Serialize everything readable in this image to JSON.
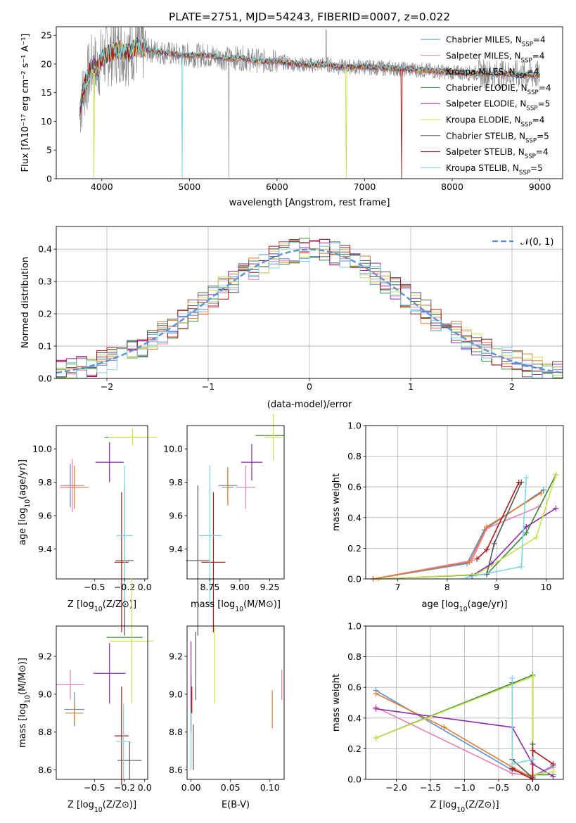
{
  "colors": {
    "Chabrier MILES": "#5b8fd6",
    "Salpeter MILES": "#e87fb0",
    "Kroupa MILES": "#e07a2a",
    "Chabrier ELODIE": "#3a8a3a",
    "Salpeter ELODIE": "#8e2bb0",
    "Kroupa ELODIE": "#c8e04a",
    "Chabrier STELIB": "#555555",
    "Salpeter STELIB": "#b01515",
    "Kroupa STELIB": "#7ad6df"
  },
  "chart_data": [
    {
      "type": "line",
      "title": "PLATE=2751, MJD=54243, FIBERID=0007, z=0.022",
      "xlabel": "wavelength [Angstrom, rest frame]",
      "ylabel": "Flux [fλ10⁻¹⁷ erg cm⁻² s⁻¹ A⁻¹]",
      "xlim": [
        3480,
        9260
      ],
      "ylim": [
        0,
        26.5
      ],
      "xticks": [
        "4000",
        "5000",
        "6000",
        "7000",
        "8000",
        "9000"
      ],
      "yticks": [
        "0",
        "5",
        "10",
        "15",
        "20",
        "25"
      ],
      "legend_position": "top-right",
      "legend": [
        {
          "base": "Chabrier MILES, N",
          "sub": "SSP",
          "tail": "=4"
        },
        {
          "base": "Salpeter MILES, N",
          "sub": "SSP",
          "tail": "=4"
        },
        {
          "base": "Kroupa MILES, N",
          "sub": "SSP",
          "tail": "=4"
        },
        {
          "base": "Chabrier ELODIE, N",
          "sub": "SSP",
          "tail": "=4"
        },
        {
          "base": "Salpeter ELODIE, N",
          "sub": "SSP",
          "tail": "=5"
        },
        {
          "base": "Kroupa ELODIE, N",
          "sub": "SSP",
          "tail": "=4"
        },
        {
          "base": "Chabrier STELIB, N",
          "sub": "SSP",
          "tail": "=5"
        },
        {
          "base": "Salpeter STELIB, N",
          "sub": "SSP",
          "tail": "=4"
        },
        {
          "base": "Kroupa STELIB, N",
          "sub": "SSP",
          "tail": "=5"
        }
      ],
      "model_wavelength": [
        3750,
        3800,
        3850,
        3900,
        3950,
        4000,
        4100,
        4200,
        4300,
        4400,
        4500,
        4700,
        4900,
        5000,
        5200,
        5400,
        5600,
        5800,
        6000,
        6200,
        6400,
        6563,
        6700,
        7000,
        7300,
        7600,
        8000,
        8500,
        9000
      ],
      "model_flux": [
        12,
        16,
        18,
        20,
        19,
        21,
        22,
        22.5,
        22,
        23,
        22.5,
        22,
        21.5,
        21.5,
        21.5,
        21,
        21,
        20.5,
        20.5,
        20,
        19.8,
        20,
        19.5,
        19.5,
        19.2,
        19,
        18.5,
        18.3,
        18
      ],
      "drop_outs": [
        {
          "series": "Kroupa ELODIE",
          "wavelength": 3910
        },
        {
          "series": "Kroupa STELIB",
          "wavelength": 4915
        },
        {
          "series": "Kroupa ELODIE",
          "wavelength": 6790
        },
        {
          "series": "Salpeter STELIB",
          "wavelength": 7420
        }
      ]
    },
    {
      "type": "area",
      "xlabel": "(data-model)/error",
      "ylabel": "Normed distribution",
      "xlim": [
        -2.5,
        2.5
      ],
      "ylim": [
        0,
        0.47
      ],
      "xticks": [
        "−2",
        "−1",
        "0",
        "1",
        "2"
      ],
      "yticks": [
        "0.0",
        "0.1",
        "0.2",
        "0.3",
        "0.4"
      ],
      "bin_width": 0.1,
      "legend_label": "𝒩(0, 1)",
      "legend_position": "top-right",
      "grid": true
    },
    {
      "type": "scatter",
      "xlabel": {
        "base": "Z [log",
        "sub": "10",
        "tail": "(Z/Z⊙)]"
      },
      "ylabel": {
        "base": "age  [log",
        "sub": "10",
        "tail": "(age/yr)]"
      },
      "xlim": [
        -0.88,
        0.03
      ],
      "ylim": [
        9.22,
        10.14
      ],
      "xticks": [
        "−0.5",
        "−0.2",
        "0.0"
      ],
      "yticks": [
        "9.4",
        "9.6",
        "9.8",
        "10.0"
      ],
      "points": [
        {
          "series": "Chabrier MILES",
          "x": -0.74,
          "y": 9.78,
          "xerr": 0.06,
          "yerr": 0.13
        },
        {
          "series": "Salpeter MILES",
          "x": -0.72,
          "y": 9.78,
          "xerr": 0.12,
          "yerr": 0.16
        },
        {
          "series": "Kroupa MILES",
          "x": -0.7,
          "y": 9.77,
          "xerr": 0.14,
          "yerr": 0.13
        },
        {
          "series": "Chabrier ELODIE",
          "x": -0.2,
          "y": 10.07,
          "xerr": 0.2,
          "yerr": 0.0
        },
        {
          "series": "Salpeter ELODIE",
          "x": -0.35,
          "y": 9.92,
          "xerr": 0.14,
          "yerr": 0.12
        },
        {
          "series": "Kroupa ELODIE",
          "x": -0.12,
          "y": 10.07,
          "xerr": 0.24,
          "yerr": 0.05
        },
        {
          "series": "Chabrier STELIB",
          "x": -0.2,
          "y": 9.33,
          "xerr": 0.09,
          "yerr": 0.45
        },
        {
          "series": "Salpeter STELIB",
          "x": -0.23,
          "y": 9.32,
          "xerr": 0.07,
          "yerr": 0.42
        },
        {
          "series": "Kroupa STELIB",
          "x": -0.2,
          "y": 9.48,
          "xerr": 0.08,
          "yerr": 0.42
        }
      ]
    },
    {
      "type": "scatter",
      "xlabel": {
        "base": "mass [log",
        "sub": "10",
        "tail": "(M/M⊙)]"
      },
      "xlim": [
        8.56,
        9.37
      ],
      "ylim": [
        9.22,
        10.14
      ],
      "xticks": [
        "8.75",
        "9.00",
        "9.25"
      ],
      "yticks": [
        "9.4",
        "9.6",
        "9.8",
        "10.0"
      ],
      "points": [
        {
          "series": "Chabrier MILES",
          "x": 8.9,
          "y": 9.78,
          "xerr": 0.08,
          "yerr": 0.11
        },
        {
          "series": "Salpeter MILES",
          "x": 9.05,
          "y": 9.77,
          "xerr": 0.08,
          "yerr": 0.13
        },
        {
          "series": "Kroupa MILES",
          "x": 8.9,
          "y": 9.77,
          "xerr": 0.05,
          "yerr": 0.11
        },
        {
          "series": "Chabrier ELODIE",
          "x": 9.25,
          "y": 10.08,
          "xerr": 0.12,
          "yerr": 0.0
        },
        {
          "series": "Salpeter ELODIE",
          "x": 9.1,
          "y": 9.92,
          "xerr": 0.09,
          "yerr": 0.11
        },
        {
          "series": "Kroupa ELODIE",
          "x": 9.28,
          "y": 10.07,
          "xerr": 0.07,
          "yerr": 0.14
        },
        {
          "series": "Chabrier STELIB",
          "x": 8.65,
          "y": 9.33,
          "xerr": 0.1,
          "yerr": 0.45
        },
        {
          "series": "Salpeter STELIB",
          "x": 8.78,
          "y": 9.32,
          "xerr": 0.1,
          "yerr": 0.42
        },
        {
          "series": "Kroupa STELIB",
          "x": 8.75,
          "y": 9.48,
          "xerr": 0.1,
          "yerr": 0.42
        }
      ]
    },
    {
      "type": "line",
      "xlabel": {
        "base": "age  [log",
        "sub": "10",
        "tail": "(age/yr)]"
      },
      "ylabel": "mass weight",
      "xlim": [
        6.35,
        10.35
      ],
      "ylim": [
        0,
        1
      ],
      "xticks": [
        "7",
        "8",
        "9",
        "10"
      ],
      "yticks": [
        "0.0",
        "0.2",
        "0.4",
        "0.6",
        "0.8",
        "1.0"
      ],
      "grid": true,
      "series": [
        {
          "name": "Chabrier MILES",
          "x": [
            6.5,
            8.4,
            8.75,
            9.95
          ],
          "y": [
            0.0,
            0.1,
            0.32,
            0.58
          ]
        },
        {
          "name": "Salpeter MILES",
          "x": [
            6.5,
            8.5,
            8.8,
            9.85
          ],
          "y": [
            0.0,
            0.12,
            0.33,
            0.47
          ]
        },
        {
          "name": "Kroupa MILES",
          "x": [
            6.5,
            8.45,
            8.8,
            9.9
          ],
          "y": [
            0.0,
            0.11,
            0.34,
            0.56
          ]
        },
        {
          "name": "Chabrier ELODIE",
          "x": [
            6.6,
            8.8,
            9.6,
            10.2
          ],
          "y": [
            0.0,
            0.03,
            0.3,
            0.68
          ]
        },
        {
          "name": "Salpeter ELODIE",
          "x": [
            8.5,
            8.9,
            9.6,
            10.2
          ],
          "y": [
            0.02,
            0.1,
            0.34,
            0.46
          ]
        },
        {
          "name": "Kroupa ELODIE",
          "x": [
            6.6,
            8.6,
            9.8,
            10.2
          ],
          "y": [
            0.0,
            0.03,
            0.27,
            0.68
          ]
        },
        {
          "name": "Chabrier STELIB",
          "x": [
            8.8,
            8.95,
            9.5
          ],
          "y": [
            0.03,
            0.23,
            0.63
          ]
        },
        {
          "name": "Salpeter STELIB",
          "x": [
            8.6,
            8.8,
            9.45
          ],
          "y": [
            0.13,
            0.19,
            0.63
          ]
        },
        {
          "name": "Kroupa STELIB",
          "x": [
            8.4,
            9.5,
            9.6
          ],
          "y": [
            0.01,
            0.08,
            0.66
          ]
        }
      ]
    },
    {
      "type": "scatter",
      "xlabel": {
        "base": "Z [log",
        "sub": "10",
        "tail": "(Z/Z⊙)]"
      },
      "ylabel": {
        "base": "mass [log",
        "sub": "10",
        "tail": "(M/M⊙)]"
      },
      "xlim": [
        -0.88,
        0.03
      ],
      "ylim": [
        8.55,
        9.36
      ],
      "xticks": [
        "−0.5",
        "−0.2",
        "0.0"
      ],
      "yticks": [
        "8.6",
        "8.8",
        "9.0",
        "9.2"
      ],
      "points": [
        {
          "series": "Chabrier MILES",
          "x": -0.7,
          "y": 8.92,
          "xerr": 0.1,
          "yerr": 0.09
        },
        {
          "series": "Salpeter MILES",
          "x": -0.74,
          "y": 9.05,
          "xerr": 0.14,
          "yerr": 0.08
        },
        {
          "series": "Kroupa MILES",
          "x": -0.7,
          "y": 8.9,
          "xerr": 0.09,
          "yerr": 0.06
        },
        {
          "series": "Chabrier ELODIE",
          "x": -0.2,
          "y": 9.3,
          "xerr": 0.18,
          "yerr": 0.0
        },
        {
          "series": "Salpeter ELODIE",
          "x": -0.35,
          "y": 9.11,
          "xerr": 0.16,
          "yerr": 0.16
        },
        {
          "series": "Kroupa ELODIE",
          "x": -0.13,
          "y": 9.28,
          "xerr": 0.22,
          "yerr": 0.33
        },
        {
          "series": "Chabrier STELIB",
          "x": -0.15,
          "y": 8.65,
          "xerr": 0.12,
          "yerr": 0.1
        },
        {
          "series": "Salpeter STELIB",
          "x": -0.23,
          "y": 8.78,
          "xerr": 0.07,
          "yerr": 0.26
        },
        {
          "series": "Kroupa STELIB",
          "x": -0.21,
          "y": 8.75,
          "xerr": 0.07,
          "yerr": 0.2
        }
      ]
    },
    {
      "type": "scatter",
      "xlabel": "E(B-V)",
      "xlim": [
        -0.005,
        0.118
      ],
      "ylim": [
        8.55,
        9.36
      ],
      "xticks": [
        "0.00",
        "0.05",
        "0.10"
      ],
      "yticks": [
        "8.6",
        "8.8",
        "9.0",
        "9.2"
      ],
      "points": [
        {
          "series": "Chabrier MILES",
          "x": 0.0,
          "y": 8.9,
          "xerr": 0.0,
          "yerr": 0.11
        },
        {
          "series": "Salpeter MILES",
          "x": 0.115,
          "y": 9.05,
          "xerr": 0.0,
          "yerr": 0.08
        },
        {
          "series": "Kroupa MILES",
          "x": 0.103,
          "y": 8.92,
          "xerr": 0.0,
          "yerr": 0.1
        },
        {
          "series": "Chabrier ELODIE",
          "x": 0.0,
          "y": 9.0,
          "xerr": 0.0,
          "yerr": 0.1
        },
        {
          "series": "Salpeter ELODIE",
          "x": 0.0,
          "y": 9.1,
          "xerr": 0.0,
          "yerr": 0.18
        },
        {
          "series": "Kroupa ELODIE",
          "x": 0.03,
          "y": 9.15,
          "xerr": 0.0,
          "yerr": 0.2
        },
        {
          "series": "Chabrier STELIB",
          "x": 0.006,
          "y": 9.15,
          "xerr": 0.0,
          "yerr": 0.18
        },
        {
          "series": "Salpeter STELIB",
          "x": 0.001,
          "y": 8.97,
          "xerr": 0.0,
          "yerr": 0.07
        },
        {
          "series": "Kroupa STELIB",
          "x": 0.0,
          "y": 8.7,
          "xerr": 0.0,
          "yerr": 0.1
        },
        {
          "series": "Chabrier STELIB",
          "x": 0.003,
          "y": 8.72,
          "xerr": 0.0,
          "yerr": 0.12
        }
      ]
    },
    {
      "type": "line",
      "xlabel": {
        "base": "Z [log",
        "sub": "10",
        "tail": "(Z/Z⊙)]"
      },
      "ylabel": "mass weight",
      "xlim": [
        -2.45,
        0.45
      ],
      "ylim": [
        0,
        1
      ],
      "xticks": [
        "−2.0",
        "−1.5",
        "−1.0",
        "−0.5",
        "0.0"
      ],
      "yticks": [
        "0.0",
        "0.2",
        "0.4",
        "0.6",
        "0.8",
        "1.0"
      ],
      "grid": true,
      "series": [
        {
          "name": "Chabrier MILES",
          "x": [
            -2.3,
            -0.3,
            0.0,
            0.3
          ],
          "y": [
            0.58,
            0.06,
            0.02,
            0.09
          ]
        },
        {
          "name": "Salpeter MILES",
          "x": [
            -2.3,
            -0.3,
            0.0,
            0.3
          ],
          "y": [
            0.47,
            0.04,
            0.02,
            0.08
          ]
        },
        {
          "name": "Kroupa MILES",
          "x": [
            -2.3,
            -1.3,
            -0.3,
            0.0
          ],
          "y": [
            0.56,
            0.34,
            0.08,
            0.01
          ]
        },
        {
          "name": "Chabrier ELODIE",
          "x": [
            -2.3,
            0.0,
            0.0,
            0.3
          ],
          "y": [
            0.27,
            0.68,
            0.03,
            0.03
          ]
        },
        {
          "name": "Salpeter ELODIE",
          "x": [
            -2.3,
            -0.3,
            0.0,
            0.3
          ],
          "y": [
            0.46,
            0.34,
            0.1,
            0.02
          ]
        },
        {
          "name": "Kroupa ELODIE",
          "x": [
            -2.3,
            0.0,
            0.0,
            0.3
          ],
          "y": [
            0.27,
            0.67,
            0.03,
            0.05
          ]
        },
        {
          "name": "Chabrier STELIB",
          "x": [
            -0.3,
            -0.3,
            0.0,
            0.0
          ],
          "y": [
            0.63,
            0.13,
            0.01,
            0.23
          ]
        },
        {
          "name": "Salpeter STELIB",
          "x": [
            -0.3,
            0.0,
            0.0,
            0.3
          ],
          "y": [
            0.07,
            0.0,
            0.19,
            0.1
          ]
        },
        {
          "name": "Kroupa STELIB",
          "x": [
            -0.3,
            -0.3,
            0.0
          ],
          "y": [
            0.66,
            0.1,
            0.13
          ]
        }
      ]
    }
  ]
}
